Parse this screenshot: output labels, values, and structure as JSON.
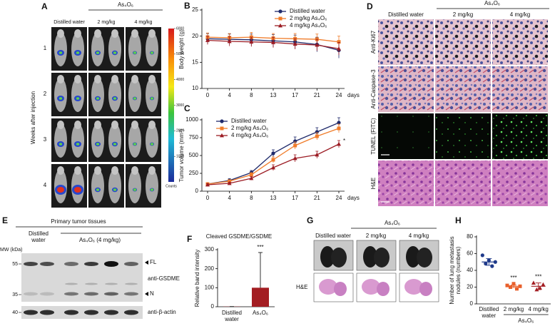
{
  "panel_a": {
    "label": "A",
    "group": "As₄O₆",
    "columns": [
      "Distilled water",
      "2 mg/kg",
      "4 mg/kg"
    ],
    "rows": [
      "1",
      "2",
      "3",
      "4"
    ],
    "y_label": "Weeks after injection",
    "colorbar_ticks": [
      6000,
      5000,
      4000,
      3000,
      2000,
      1000
    ],
    "colorbar_label": "Counts"
  },
  "panel_d": {
    "label": "D",
    "group": "As₄O₆",
    "columns": [
      "Distilled water",
      "2 mg/kg",
      "4 mg/kg"
    ],
    "rows": [
      "Anti-Ki67",
      "Anti-Caspase-3",
      "TUNEL (FITC)",
      "H&E"
    ]
  },
  "panel_e": {
    "label": "E",
    "title": "Primary tumor tissues",
    "groups": [
      "Distilled water",
      "As₄O₆ (4 mg/kg)"
    ],
    "mw_label": "MW (kDa)",
    "mw_markers": [
      55,
      35,
      40
    ],
    "band_labels": [
      "FL",
      "N"
    ],
    "antibodies": [
      "anti-GSDME",
      "anti-β-actin"
    ]
  },
  "panel_g": {
    "label": "G",
    "group": "As₄O₆",
    "columns": [
      "Distilled water",
      "2 mg/kg",
      "4 mg/kg"
    ],
    "row_label": "H&E"
  },
  "chart_data": [
    {
      "panel": "B",
      "type": "line",
      "y_label": "Body weight (g)",
      "x_label": "days",
      "categories": [
        "0",
        "4",
        "8",
        "13",
        "17",
        "21",
        "24"
      ],
      "ylim": [
        10,
        25
      ],
      "yticks": [
        10,
        15,
        20,
        25
      ],
      "legend": "top-right",
      "series": [
        {
          "name": "Distilled water",
          "color": "#1f2a6b",
          "marker": "circle",
          "values": [
            19.5,
            19.4,
            19.3,
            19.1,
            18.9,
            18.4,
            17.3
          ],
          "errors": [
            1,
            1,
            1.1,
            1.2,
            1.3,
            1.4,
            1.5
          ]
        },
        {
          "name": "2 mg/kg As₄O₆",
          "color": "#f07c2a",
          "marker": "square",
          "values": [
            19.8,
            19.7,
            19.8,
            19.6,
            19.5,
            19.4,
            18.9
          ],
          "errors": [
            0.8,
            0.8,
            0.9,
            0.9,
            1,
            1,
            1.1
          ]
        },
        {
          "name": "4 mg/kg As₄O₆",
          "color": "#9c1c24",
          "marker": "triangle",
          "values": [
            19.2,
            19,
            18.9,
            18.8,
            18.5,
            18.3,
            17.6
          ],
          "errors": [
            0.8,
            0.9,
            0.9,
            1,
            1,
            1.1,
            1.2
          ]
        }
      ]
    },
    {
      "panel": "C",
      "type": "line",
      "y_label": "Tumor volume (mm³)",
      "x_label": "days",
      "categories": [
        "0",
        "4",
        "8",
        "13",
        "17",
        "21",
        "24"
      ],
      "ylim": [
        0,
        1000
      ],
      "yticks": [
        0,
        250,
        500,
        750,
        1000
      ],
      "legend": "top-left",
      "annotation": "*",
      "series": [
        {
          "name": "Distilled water",
          "color": "#1f2a6b",
          "marker": "circle",
          "values": [
            100,
            150,
            260,
            530,
            700,
            830,
            960
          ],
          "errors": [
            20,
            25,
            30,
            50,
            60,
            60,
            70
          ]
        },
        {
          "name": "2 mg/kg As₄O₆",
          "color": "#f07c2a",
          "marker": "square",
          "values": [
            100,
            140,
            230,
            440,
            640,
            770,
            880
          ],
          "errors": [
            15,
            20,
            30,
            40,
            50,
            50,
            60
          ]
        },
        {
          "name": "4 mg/kg As₄O₆",
          "color": "#9c1c24",
          "marker": "triangle",
          "values": [
            90,
            110,
            180,
            330,
            460,
            510,
            660
          ],
          "errors": [
            15,
            15,
            25,
            40,
            50,
            50,
            50
          ]
        }
      ]
    },
    {
      "panel": "F",
      "type": "bar",
      "title": "Cleaved GSDME/GSDME",
      "y_label": "Relative band intensity",
      "categories": [
        "Distilled water",
        "As₄O₆"
      ],
      "values": [
        1,
        100
      ],
      "errors": [
        0,
        185
      ],
      "color": "#a31d22",
      "ylim": [
        0,
        300
      ],
      "yticks": [
        0,
        100,
        200,
        300
      ],
      "significance": {
        "text": "***",
        "categories": [
          1
        ]
      }
    },
    {
      "panel": "H",
      "type": "dot",
      "y_label": "Number of lung metastasis nodules (numbers)",
      "categories": [
        "Distilled water",
        "2 mg/kg",
        "4 mg/kg"
      ],
      "group_label": "As₄O₆",
      "group_categories": [
        1,
        2
      ],
      "colors": [
        "#1f3a8a",
        "#e8602c",
        "#a31d22"
      ],
      "markers": [
        "circle",
        "square",
        "triangle"
      ],
      "points": [
        [
          58,
          48,
          52,
          45,
          50
        ],
        [
          22,
          20,
          24,
          18,
          21
        ],
        [
          25,
          17,
          19,
          23
        ]
      ],
      "values": [
        50,
        21,
        21
      ],
      "errors": [
        4,
        1.5,
        4
      ],
      "ylim": [
        0,
        80
      ],
      "yticks": [
        0,
        20,
        40,
        60,
        80
      ],
      "significance": {
        "text": "***",
        "categories": [
          1,
          2
        ]
      }
    }
  ]
}
